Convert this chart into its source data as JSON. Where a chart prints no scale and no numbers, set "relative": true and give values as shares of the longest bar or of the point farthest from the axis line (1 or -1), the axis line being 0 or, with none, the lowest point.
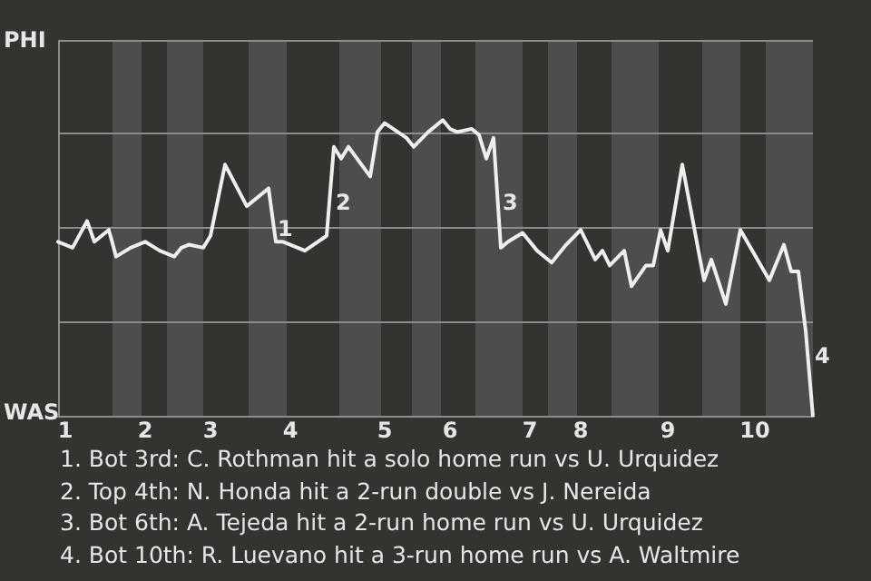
{
  "chart_data": {
    "type": "line",
    "relative": true,
    "categories": [
      null,
      "1",
      null,
      null,
      null,
      null,
      null,
      null,
      null,
      null,
      null,
      null,
      "2",
      null,
      null,
      null,
      null,
      null,
      null,
      null,
      null,
      "3",
      null,
      null,
      null,
      null,
      null,
      null,
      null,
      null,
      null,
      null,
      "4",
      null,
      null,
      null,
      null,
      null,
      null,
      null,
      null,
      null,
      null,
      null,
      null,
      "5",
      null,
      null,
      null,
      null,
      null,
      null,
      null,
      null,
      "6",
      null,
      null,
      null,
      null,
      null,
      null,
      null,
      null,
      null,
      null,
      "7",
      null,
      null,
      null,
      null,
      null,
      null,
      "8",
      null,
      null,
      null,
      null,
      null,
      null,
      null,
      null,
      null,
      null,
      null,
      "9",
      null,
      null,
      null,
      null,
      null,
      null,
      null,
      null,
      null,
      null,
      null,
      "10",
      null,
      null,
      null,
      null,
      null,
      null,
      null,
      null
    ],
    "series": [
      {
        "color": "#eeeeee",
        "values": [
          0.59,
          null,
          0.57,
          null,
          0.66,
          0.59,
          null,
          0.63,
          0.54,
          null,
          0.57,
          null,
          0.59,
          null,
          0.56,
          null,
          0.54,
          0.57,
          0.58,
          null,
          0.57,
          0.61,
          null,
          0.85,
          null,
          null,
          0.71,
          null,
          null,
          0.77,
          0.59,
          0.59,
          null,
          null,
          0.56,
          null,
          null,
          0.61,
          0.91,
          0.87,
          0.91,
          null,
          null,
          0.81,
          0.96,
          0.99,
          null,
          null,
          0.94,
          0.91,
          null,
          0.96,
          null,
          1,
          0.97,
          0.96,
          null,
          0.97,
          0.95,
          0.87,
          0.94,
          0.57,
          0.59,
          null,
          0.62,
          null,
          0.56,
          null,
          0.52,
          null,
          0.58,
          null,
          0.63,
          null,
          0.53,
          0.56,
          0.51,
          null,
          0.56,
          0.44,
          null,
          0.51,
          0.51,
          0.63,
          0.56,
          null,
          0.85,
          null,
          null,
          0.46,
          0.53,
          null,
          0.38,
          null,
          0.63,
          null,
          null,
          null,
          0.46,
          null,
          0.58,
          0.49,
          0.49,
          0.29,
          0
        ]
      }
    ],
    "ref_lines": [
      {
        "axis": "y",
        "value": 0.32,
        "color": "#8c8c8a"
      },
      {
        "axis": "y",
        "value": 0.64,
        "color": "#8c8c8a"
      },
      {
        "axis": "y",
        "value": 0.96,
        "color": "#8c8c8a"
      },
      {
        "axis": "y",
        "value": 1.27,
        "color": "#8c8c8a"
      }
    ],
    "marker": "none",
    "line_style": "solid",
    "annotations": [
      "PHI",
      "WAS",
      "1",
      "2",
      "3",
      "4",
      "1. Bot 3rd: C. Rothman hit a solo home run vs U. Urquidez",
      "2. Top 4th: N. Honda hit a 2-run double vs J. Nereida",
      "3. Bot 6th: A. Tejeda hit a 2-run home run vs U. Urquidez",
      "4. Bot 10th: R. Luevano hit a 3-run home run vs A. Waltmire"
    ]
  }
}
